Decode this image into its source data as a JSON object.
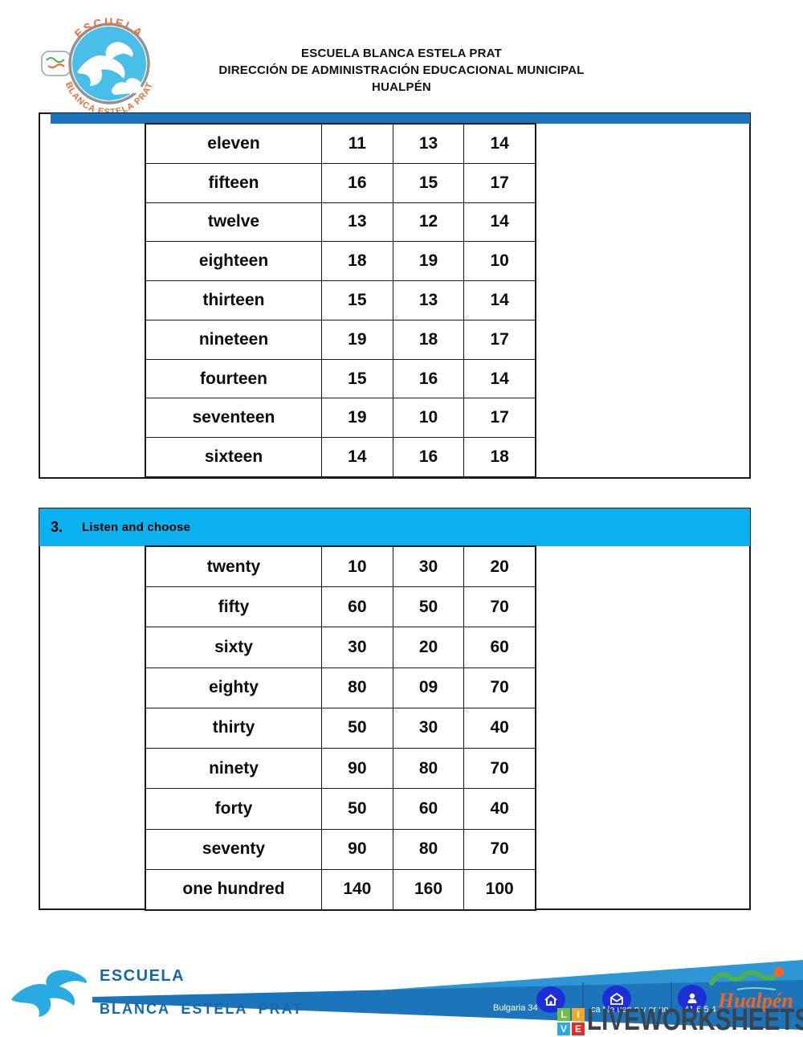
{
  "header": {
    "line1": "ESCUELA BLANCA ESTELA PRAT",
    "line2": "DIRECCIÓN DE ADMINISTRACIÓN EDUCACIONAL MUNICIPAL",
    "line3": "HUALPÉN",
    "badge": {
      "arc_top": "ESCUELA",
      "arc_bottom": "BLANCA ESTELA PRAT"
    }
  },
  "section2": {
    "rows": [
      {
        "word": "eleven",
        "options": [
          "11",
          "13",
          "14"
        ]
      },
      {
        "word": "fifteen",
        "options": [
          "16",
          "15",
          "17"
        ]
      },
      {
        "word": "twelve",
        "options": [
          "13",
          "12",
          "14"
        ]
      },
      {
        "word": "eighteen",
        "options": [
          "18",
          "19",
          "10"
        ]
      },
      {
        "word": "thirteen",
        "options": [
          "15",
          "13",
          "14"
        ]
      },
      {
        "word": "nineteen",
        "options": [
          "19",
          "18",
          "17"
        ]
      },
      {
        "word": "fourteen",
        "options": [
          "15",
          "16",
          "14"
        ]
      },
      {
        "word": "seventeen",
        "options": [
          "19",
          "10",
          "17"
        ]
      },
      {
        "word": "sixteen",
        "options": [
          "14",
          "16",
          "18"
        ]
      }
    ]
  },
  "section3": {
    "number": "3.",
    "title": "Listen and choose",
    "rows": [
      {
        "word": "twenty",
        "options": [
          "10",
          "30",
          "20"
        ]
      },
      {
        "word": "fifty",
        "options": [
          "60",
          "50",
          "70"
        ]
      },
      {
        "word": "sixty",
        "options": [
          "30",
          "20",
          "60"
        ]
      },
      {
        "word": "eighty",
        "options": [
          "80",
          "09",
          "70"
        ]
      },
      {
        "word": "thirty",
        "options": [
          "50",
          "30",
          "40"
        ]
      },
      {
        "word": "ninety",
        "options": [
          "90",
          "80",
          "70"
        ]
      },
      {
        "word": "forty",
        "options": [
          "50",
          "60",
          "40"
        ]
      },
      {
        "word": "seventy",
        "options": [
          "90",
          "80",
          "70"
        ]
      },
      {
        "word": "one hundred",
        "options": [
          "140",
          "160",
          "100"
        ]
      }
    ]
  },
  "footer": {
    "school_top": "ESCUELA",
    "school_bottom": "BLANCA ESTELA PRAT",
    "contact": {
      "address_fragment": "Bulgaria 34",
      "email_fragment": "ca t le uen n y or uo",
      "phone_fragment": "41  6  5 4"
    },
    "brand": {
      "squares": [
        "L",
        "I",
        "V",
        "E"
      ],
      "square_colors": [
        "#6FBE45",
        "#F5A623",
        "#29ABE2",
        "#EA2A2A"
      ],
      "wordmark": "LIVEWORKSHEETS"
    }
  },
  "colors": {
    "blue_bar": "#1B75BC",
    "cyan_header": "#0CB2F0",
    "ribbon_dark": "#1C74BB",
    "ribbon_light": "#2F96D4",
    "icon_blue": "#1D2DD8",
    "footer_text_blue": "#1767AE",
    "badge_circle": "#48BEE9",
    "badge_text_orange": "#E8703A",
    "wordmark_gray": "#39434D"
  }
}
